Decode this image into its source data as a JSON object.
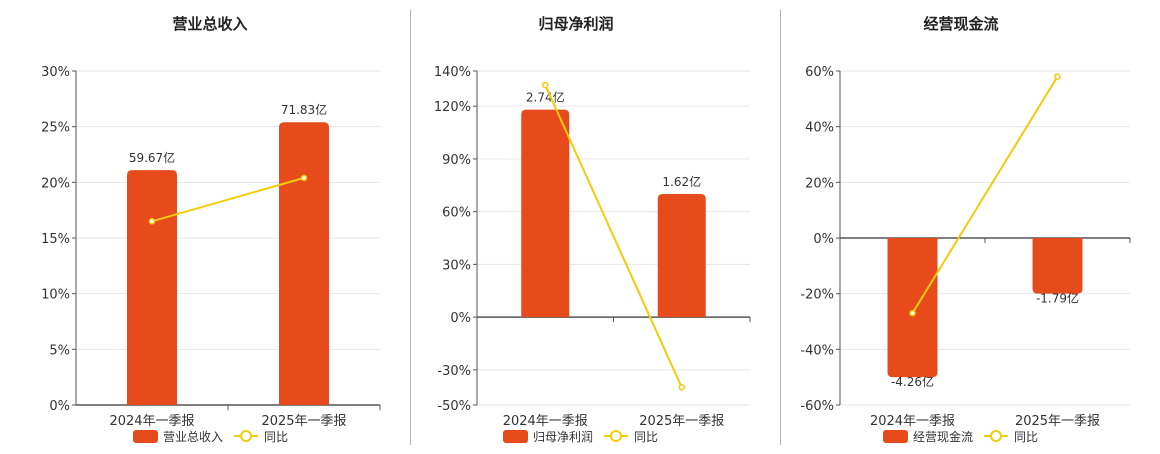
{
  "colors": {
    "bar": "#E84B1B",
    "line": "#F2CC0C",
    "grid": "#E6E6E6",
    "axis": "#555555"
  },
  "chart_data": [
    {
      "type": "bar",
      "title": "营业总收入",
      "categories": [
        "2024年一季报",
        "2025年一季报"
      ],
      "ylim": [
        0,
        30
      ],
      "yticks": [
        "0%",
        "5%",
        "10%",
        "15%",
        "20%",
        "25%",
        "30%"
      ],
      "series": [
        {
          "name": "营业总收入",
          "type": "bar",
          "values": [
            21.1,
            25.4
          ],
          "labels": [
            "59.67亿",
            "71.83亿"
          ]
        },
        {
          "name": "同比",
          "type": "line",
          "values": [
            16.5,
            20.4
          ]
        }
      ],
      "legend": "bottom",
      "grid": true
    },
    {
      "type": "bar",
      "title": "归母净利润",
      "categories": [
        "2024年一季报",
        "2025年一季报"
      ],
      "ylim": [
        -50,
        140
      ],
      "yticks": [
        "-50%",
        "-30%",
        "0%",
        "30%",
        "60%",
        "90%",
        "120%",
        "140%"
      ],
      "series": [
        {
          "name": "归母净利润",
          "type": "bar",
          "values": [
            118,
            70
          ],
          "labels": [
            "2.74亿",
            "1.62亿"
          ]
        },
        {
          "name": "同比",
          "type": "line",
          "values": [
            132,
            -40
          ]
        }
      ],
      "legend": "bottom",
      "grid": true
    },
    {
      "type": "bar",
      "title": "经营现金流",
      "categories": [
        "2024年一季报",
        "2025年一季报"
      ],
      "ylim": [
        -60,
        60
      ],
      "yticks": [
        "-60%",
        "-40%",
        "-20%",
        "0%",
        "20%",
        "40%",
        "60%"
      ],
      "series": [
        {
          "name": "经营现金流",
          "type": "bar",
          "values": [
            -50,
            -20
          ],
          "labels": [
            "-4.26亿",
            "-1.79亿"
          ]
        },
        {
          "name": "同比",
          "type": "line",
          "values": [
            -27,
            58
          ]
        }
      ],
      "legend": "bottom",
      "grid": true
    }
  ]
}
